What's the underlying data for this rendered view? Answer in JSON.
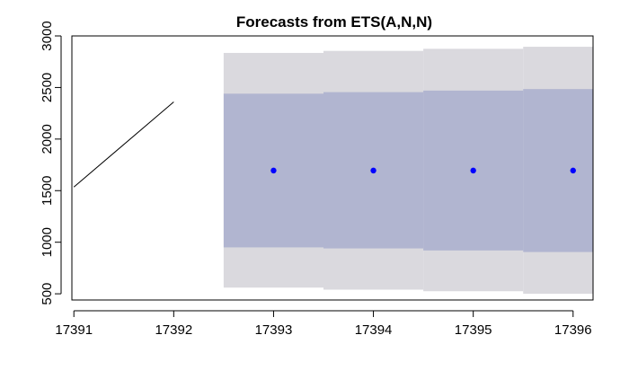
{
  "chart_data": {
    "type": "line",
    "title": "Forecasts from ETS(A,N,N)",
    "xlabel": "",
    "ylabel": "",
    "xlim": [
      17390.98,
      17396.2
    ],
    "ylim": [
      440,
      3000
    ],
    "x_ticks": [
      17391,
      17392,
      17393,
      17394,
      17395,
      17396
    ],
    "y_ticks": [
      500,
      1000,
      1500,
      2000,
      2500,
      3000
    ],
    "history": {
      "x": [
        17391,
        17392
      ],
      "y": [
        1535,
        2360
      ]
    },
    "forecast": {
      "x": [
        17393,
        17394,
        17395,
        17396
      ],
      "mean": [
        1695,
        1695,
        1695,
        1695
      ],
      "lower80": [
        950,
        940,
        920,
        905
      ],
      "upper80": [
        2440,
        2455,
        2470,
        2485
      ],
      "lower95": [
        560,
        540,
        525,
        500
      ],
      "upper95": [
        2835,
        2855,
        2875,
        2895
      ]
    },
    "colors": {
      "history_line": "#000000",
      "forecast_point": "#0000ff",
      "band80": "#b1b5d0",
      "band95": "#dad9de"
    },
    "grid": false,
    "legend": "none"
  }
}
